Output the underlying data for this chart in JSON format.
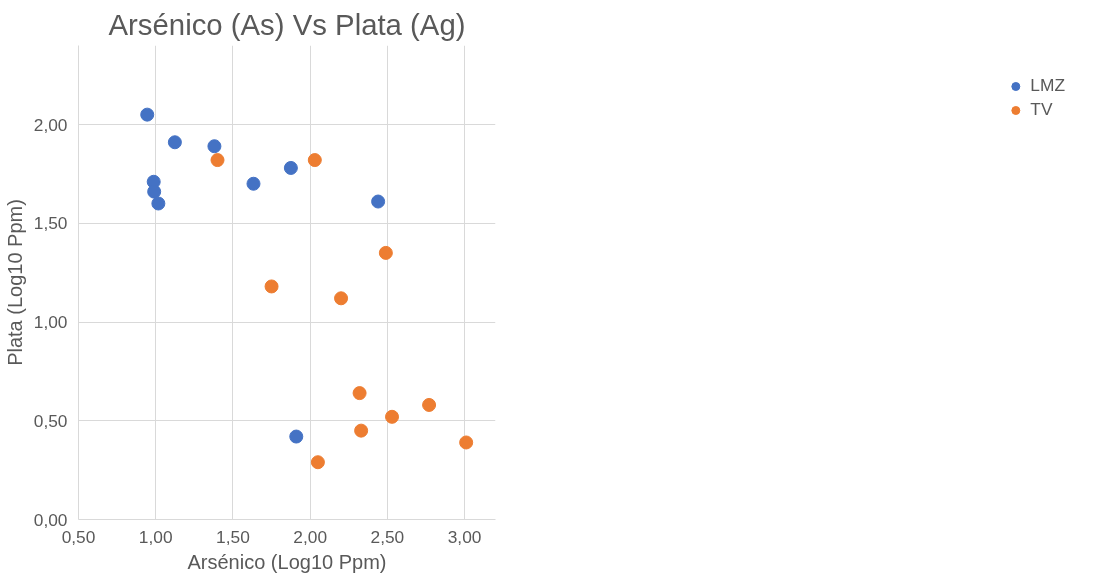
{
  "chart_data": {
    "type": "scatter",
    "title": "Arsénico (As) Vs Plata (Ag)",
    "xlabel": "Arsénico (Log10 Ppm)",
    "ylabel": "Plata (Log10 Ppm)",
    "xlim": [
      0.5,
      3.2
    ],
    "ylim": [
      0,
      2.4
    ],
    "xticks": [
      {
        "value": 0.5,
        "label": "0,50"
      },
      {
        "value": 1.0,
        "label": "1,00"
      },
      {
        "value": 1.5,
        "label": "1,50"
      },
      {
        "value": 2.0,
        "label": "2,00"
      },
      {
        "value": 2.5,
        "label": "2,50"
      },
      {
        "value": 3.0,
        "label": "3,00"
      }
    ],
    "yticks": [
      {
        "value": 0,
        "label": "0,00"
      },
      {
        "value": 0.5,
        "label": "0,50"
      },
      {
        "value": 1.0,
        "label": "1,00"
      },
      {
        "value": 1.5,
        "label": "1,50"
      },
      {
        "value": 2.0,
        "label": "2,00"
      }
    ],
    "grid": true,
    "legend": "right",
    "marker": "circle",
    "series": [
      {
        "name": "LMZ",
        "color": "#4472c4",
        "x": [
          0.945,
          0.987,
          0.99,
          1.017,
          1.124,
          1.38,
          1.633,
          1.875,
          2.44,
          1.91
        ],
        "values": [
          2.05,
          1.71,
          1.66,
          1.6,
          1.91,
          1.89,
          1.7,
          1.78,
          1.61,
          0.42
        ]
      },
      {
        "name": "TV",
        "color": "#ed7d31",
        "x": [
          1.4,
          2.03,
          1.75,
          2.2,
          2.49,
          2.32,
          2.33,
          2.53,
          2.77,
          2.05,
          3.01
        ],
        "values": [
          1.82,
          1.82,
          1.18,
          1.12,
          1.35,
          0.64,
          0.45,
          0.52,
          0.58,
          0.29,
          0.39
        ]
      }
    ]
  }
}
